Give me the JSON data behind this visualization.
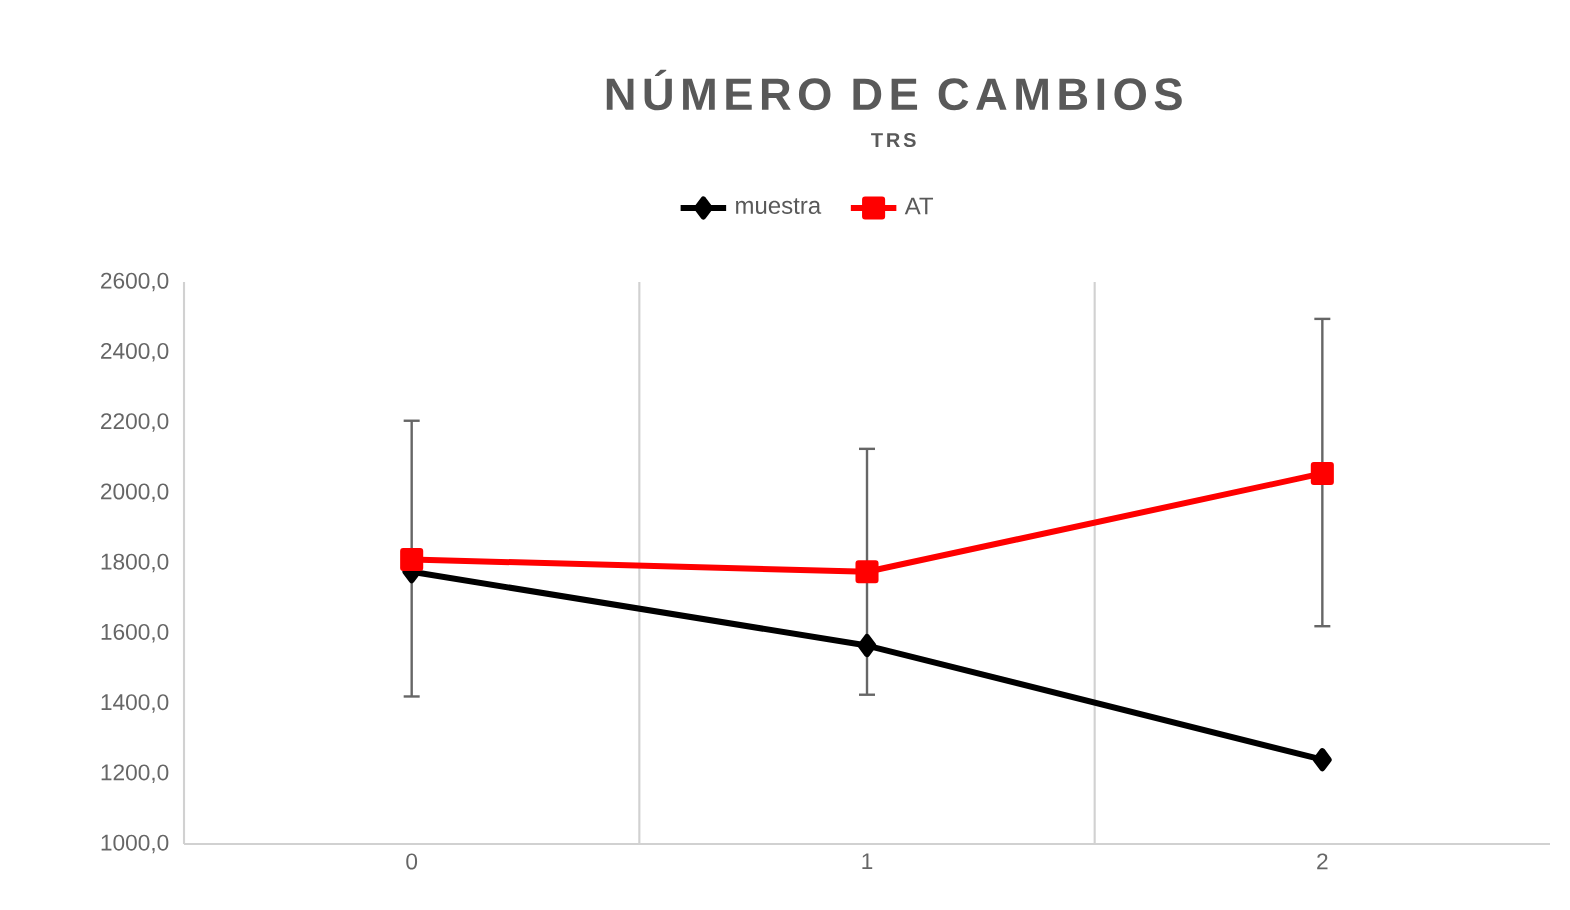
{
  "chart_data": {
    "type": "line",
    "title": "NÚMERO DE CAMBIOS",
    "subtitle": "TRS",
    "categories": [
      "0",
      "1",
      "2"
    ],
    "series": [
      {
        "name": "muestra",
        "color": "#000000",
        "marker": "diamond",
        "values": [
          1775,
          1565,
          1240
        ]
      },
      {
        "name": "AT",
        "color": "#ff0000",
        "marker": "square",
        "values": [
          1810,
          1775,
          2055
        ],
        "errors": [
          [
            1420,
            2205
          ],
          [
            1425,
            2125
          ],
          [
            1620,
            2495
          ]
        ]
      }
    ],
    "ylim": [
      1000,
      2600
    ],
    "yticks": [
      {
        "value": 1000,
        "label": "1000,0"
      },
      {
        "value": 1200,
        "label": "1200,0"
      },
      {
        "value": 1400,
        "label": "1400,0"
      },
      {
        "value": 1600,
        "label": "1600,0"
      },
      {
        "value": 1800,
        "label": "1800,0"
      },
      {
        "value": 2000,
        "label": "2000,0"
      },
      {
        "value": 2200,
        "label": "2200,0"
      },
      {
        "value": 2400,
        "label": "2400,0"
      },
      {
        "value": 2600,
        "label": "2600,0"
      }
    ],
    "grid": "x",
    "legend": "top",
    "line_style": "solid"
  }
}
